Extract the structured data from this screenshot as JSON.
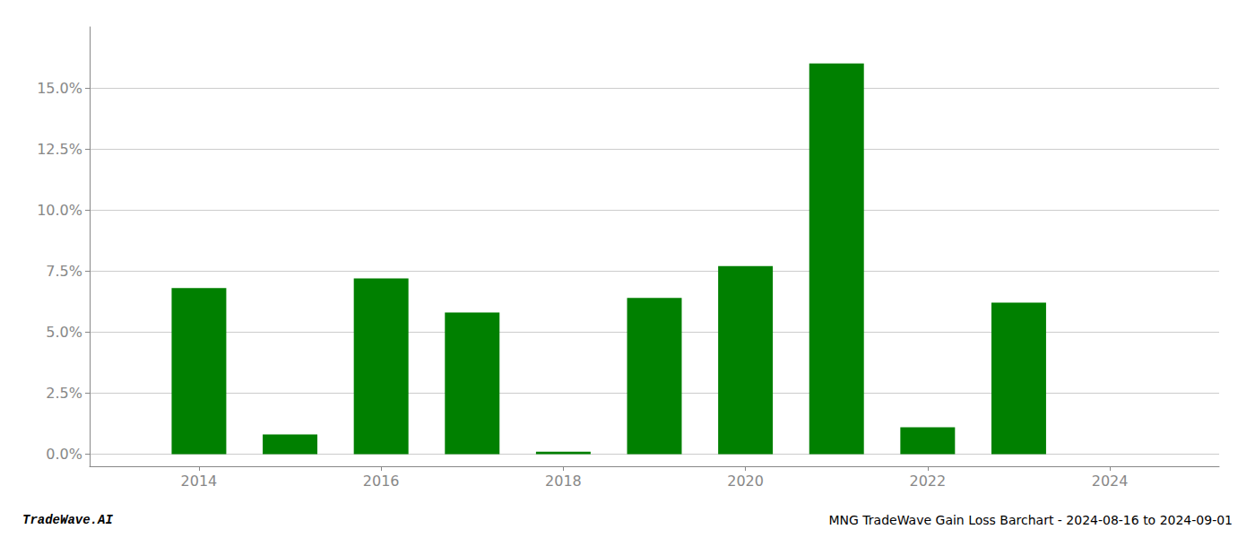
{
  "chart_data": {
    "type": "bar",
    "title": "MNG TradeWave Gain Loss Barchart - 2024-08-16 to 2024-09-01",
    "annotations": [
      "TradeWave.AI"
    ],
    "x": [
      2014,
      2015,
      2016,
      2017,
      2018,
      2019,
      2020,
      2021,
      2022,
      2023,
      2024
    ],
    "values": [
      0.068,
      0.008,
      0.072,
      0.058,
      0.001,
      0.064,
      0.077,
      0.16,
      0.011,
      0.062,
      0.0
    ],
    "color": "#008000",
    "xlim": [
      2012.8,
      2025.2
    ],
    "xticks": [
      2014,
      2016,
      2018,
      2020,
      2022,
      2024
    ],
    "ylim": [
      -0.005,
      0.175
    ],
    "yticks": [
      {
        "value": 0.0,
        "label": "0.0%"
      },
      {
        "value": 0.025,
        "label": "2.5%"
      },
      {
        "value": 0.05,
        "label": "5.0%"
      },
      {
        "value": 0.075,
        "label": "7.5%"
      },
      {
        "value": 0.1,
        "label": "10.0%"
      },
      {
        "value": 0.125,
        "label": "12.5%"
      },
      {
        "value": 0.15,
        "label": "15.0%"
      }
    ],
    "grid": true
  }
}
